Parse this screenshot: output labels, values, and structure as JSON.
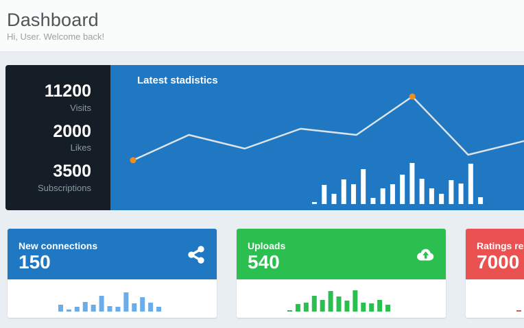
{
  "header": {
    "title": "Dashboard",
    "subtitle": "Hi, User. Welcome back!"
  },
  "stats": {
    "items": [
      {
        "value": "11200",
        "label": "Visits"
      },
      {
        "value": "2000",
        "label": "Likes"
      },
      {
        "value": "3500",
        "label": "Subscriptions"
      }
    ]
  },
  "main_chart": {
    "title": "Latest stadistics"
  },
  "cards": [
    {
      "label": "New connections",
      "value": "150",
      "icon": "share-icon",
      "color": "#1f78c1"
    },
    {
      "label": "Uploads",
      "value": "540",
      "icon": "cloud-upload-icon",
      "color": "#2bbf4f"
    },
    {
      "label": "Ratings received",
      "value": "7000",
      "icon": null,
      "color": "#ea5151"
    }
  ],
  "colors": {
    "page_background": "#e9eef2",
    "header_background": "#fafbfb",
    "stats_panel": "#151e27",
    "chart_panel_blue": "#1f78c1",
    "card_blue": "#1f78c1",
    "card_green": "#2bbf4f",
    "card_red": "#ea5151",
    "line_color": "#dde4e9",
    "marker_orange": "#ef8d1d"
  },
  "chart_data": [
    {
      "id": "latest-statistics",
      "type": "line+bar",
      "title": "Latest stadistics",
      "grid": false,
      "axes_labels": false,
      "line": {
        "x": [
          1,
          2,
          3,
          4,
          5,
          6,
          7,
          8
        ],
        "values": [
          64,
          101,
          81,
          110,
          101,
          157,
          72,
          92
        ],
        "color": "#dde4e9",
        "marker_indices": [
          0,
          5
        ],
        "marker_color": "#ef8d1d"
      },
      "bars": {
        "values": [
          3,
          28,
          15,
          36,
          29,
          51,
          9,
          23,
          29,
          43,
          60,
          37,
          23,
          15,
          35,
          30,
          59,
          10
        ],
        "color": "#ffffff"
      }
    },
    {
      "id": "new-connections-spark",
      "type": "bar",
      "values": [
        10,
        3,
        7,
        14,
        10,
        23,
        8,
        7,
        28,
        12,
        21,
        13,
        7
      ],
      "color": "#6aade8"
    },
    {
      "id": "uploads-spark",
      "type": "bar",
      "values": [
        2,
        11,
        13,
        23,
        17,
        30,
        22,
        16,
        31,
        13,
        12,
        17,
        10
      ],
      "color": "#2bbf4f"
    },
    {
      "id": "ratings-spark",
      "type": "bar",
      "values": [
        2
      ],
      "color": "#ea5151"
    }
  ]
}
